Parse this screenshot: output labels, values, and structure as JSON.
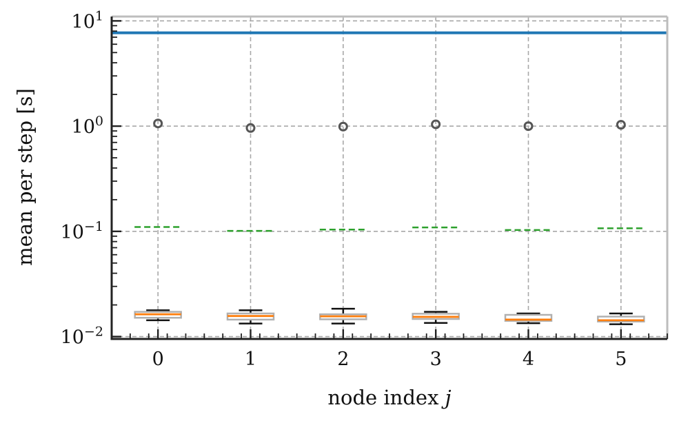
{
  "chart_data": {
    "type": "box",
    "title": "",
    "xlabel": "node index",
    "xlabel_var": "j",
    "ylabel": "mean per step [s]",
    "yscale": "log",
    "ylim": [
      0.0095,
      11
    ],
    "xlim": [
      -0.5,
      5.5
    ],
    "grid": true,
    "categories": [
      "0",
      "1",
      "2",
      "3",
      "4",
      "5"
    ],
    "y_ticks": [
      {
        "value": 0.01,
        "base": "10",
        "exp": "−2"
      },
      {
        "value": 0.1,
        "base": "10",
        "exp": "−1"
      },
      {
        "value": 1,
        "base": "10",
        "exp": "0"
      },
      {
        "value": 10,
        "base": "10",
        "exp": "1"
      }
    ],
    "reference_line": {
      "value": 7.7,
      "color": "#1f77b4"
    },
    "boxes": [
      {
        "x": 0,
        "whislo": 0.0143,
        "q1": 0.0151,
        "med": 0.0163,
        "q3": 0.0172,
        "whishi": 0.0178
      },
      {
        "x": 1,
        "whislo": 0.0133,
        "q1": 0.0145,
        "med": 0.0157,
        "q3": 0.0166,
        "whishi": 0.0178
      },
      {
        "x": 2,
        "whislo": 0.0133,
        "q1": 0.0146,
        "med": 0.0156,
        "q3": 0.0163,
        "whishi": 0.0184
      },
      {
        "x": 3,
        "whislo": 0.0135,
        "q1": 0.0147,
        "med": 0.0154,
        "q3": 0.0165,
        "whishi": 0.0172
      },
      {
        "x": 4,
        "whislo": 0.0134,
        "q1": 0.0141,
        "med": 0.0145,
        "q3": 0.0161,
        "whishi": 0.0166
      },
      {
        "x": 5,
        "whislo": 0.0131,
        "q1": 0.0139,
        "med": 0.0143,
        "q3": 0.0155,
        "whishi": 0.0166
      }
    ],
    "dashed_means": [
      0.11,
      0.101,
      0.104,
      0.109,
      0.103,
      0.107
    ],
    "circle_points": [
      1.06,
      0.96,
      0.99,
      1.04,
      1.0,
      1.03
    ],
    "colors": {
      "box": "#b0b0b0",
      "median": "#ff7f0e",
      "whisker": "#111111",
      "dashed": "#2ca02c",
      "circle": "#555555",
      "grid": "#a8a8a8"
    }
  }
}
